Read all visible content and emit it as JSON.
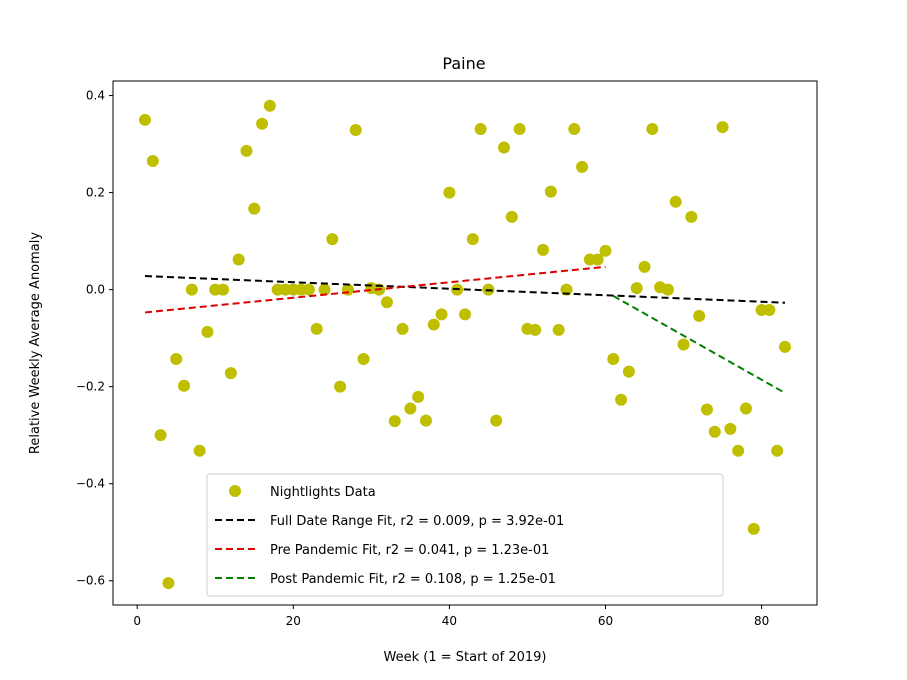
{
  "chart_data": {
    "type": "scatter",
    "title": "Paine",
    "xlabel": "Week (1 = Start of 2019)",
    "ylabel": "Relative Weekly Average Anomaly",
    "xlim": [
      -3.1,
      87.1
    ],
    "ylim": [
      -0.65,
      0.43
    ],
    "xticks": [
      0,
      20,
      40,
      60,
      80
    ],
    "yticks": [
      -0.6,
      -0.4,
      -0.2,
      0.0,
      0.2,
      0.4
    ],
    "xtick_labels": [
      "0",
      "20",
      "40",
      "60",
      "80"
    ],
    "ytick_labels": [
      "−0.6",
      "−0.4",
      "−0.2",
      "0.0",
      "0.2",
      "0.4"
    ],
    "grid": false,
    "legend_position": "lower-center",
    "series": [
      {
        "name": "Nightlights Data",
        "kind": "scatter",
        "color": "#bfbf00",
        "points": [
          [
            1,
            0.35
          ],
          [
            2,
            0.265
          ],
          [
            3,
            -0.3
          ],
          [
            4,
            -0.605
          ],
          [
            5,
            -0.143
          ],
          [
            6,
            -0.198
          ],
          [
            7,
            0.0
          ],
          [
            8,
            -0.332
          ],
          [
            9,
            -0.087
          ],
          [
            10,
            0.0
          ],
          [
            11,
            0.0
          ],
          [
            12,
            -0.172
          ],
          [
            13,
            0.062
          ],
          [
            14,
            0.286
          ],
          [
            15,
            0.167
          ],
          [
            16,
            0.342
          ],
          [
            17,
            0.379
          ],
          [
            18,
            0.0
          ],
          [
            19,
            0.0
          ],
          [
            20,
            0.0
          ],
          [
            21,
            0.0
          ],
          [
            22,
            0.0
          ],
          [
            23,
            -0.081
          ],
          [
            24,
            0.0
          ],
          [
            25,
            0.104
          ],
          [
            26,
            -0.2
          ],
          [
            27,
            0.0
          ],
          [
            28,
            0.329
          ],
          [
            29,
            -0.143
          ],
          [
            30,
            0.003
          ],
          [
            31,
            0.0
          ],
          [
            32,
            -0.026
          ],
          [
            33,
            -0.271
          ],
          [
            34,
            -0.081
          ],
          [
            35,
            -0.245
          ],
          [
            36,
            -0.221
          ],
          [
            37,
            -0.27
          ],
          [
            38,
            -0.072
          ],
          [
            39,
            -0.051
          ],
          [
            40,
            0.2
          ],
          [
            41,
            0.0
          ],
          [
            42,
            -0.051
          ],
          [
            43,
            0.104
          ],
          [
            44,
            0.331
          ],
          [
            45,
            0.0
          ],
          [
            46,
            -0.27
          ],
          [
            47,
            0.293
          ],
          [
            48,
            0.15
          ],
          [
            49,
            0.331
          ],
          [
            50,
            -0.081
          ],
          [
            51,
            -0.083
          ],
          [
            52,
            0.082
          ],
          [
            53,
            0.202
          ],
          [
            54,
            -0.083
          ],
          [
            55,
            0.0
          ],
          [
            56,
            0.331
          ],
          [
            57,
            0.253
          ],
          [
            58,
            0.062
          ],
          [
            59,
            0.062
          ],
          [
            60,
            0.08
          ],
          [
            61,
            -0.143
          ],
          [
            62,
            -0.227
          ],
          [
            63,
            -0.169
          ],
          [
            64,
            0.003
          ],
          [
            65,
            0.047
          ],
          [
            66,
            0.331
          ],
          [
            67,
            0.005
          ],
          [
            68,
            0.0
          ],
          [
            69,
            0.181
          ],
          [
            70,
            -0.113
          ],
          [
            71,
            0.15
          ],
          [
            72,
            -0.054
          ],
          [
            73,
            -0.247
          ],
          [
            74,
            -0.293
          ],
          [
            75,
            0.335
          ],
          [
            76,
            -0.287
          ],
          [
            77,
            -0.332
          ],
          [
            78,
            -0.245
          ],
          [
            79,
            -0.493
          ],
          [
            80,
            -0.042
          ],
          [
            81,
            -0.042
          ],
          [
            82,
            -0.332
          ],
          [
            83,
            -0.118
          ]
        ]
      },
      {
        "name": "Full Date Range Fit, r2 = 0.009, p = 3.92e-01",
        "kind": "line",
        "color": "#000000",
        "points": [
          [
            1,
            0.028
          ],
          [
            83,
            -0.027
          ]
        ]
      },
      {
        "name": "Pre Pandemic Fit, r2 = 0.041, p = 1.23e-01",
        "kind": "line",
        "color": "#dd0000",
        "points": [
          [
            1,
            -0.047
          ],
          [
            60,
            0.047
          ]
        ]
      },
      {
        "name": "Post Pandemic Fit, r2 = 0.108, p = 1.25e-01",
        "kind": "line",
        "color": "#007f00",
        "points": [
          [
            61,
            -0.013
          ],
          [
            83,
            -0.213
          ]
        ]
      }
    ]
  }
}
